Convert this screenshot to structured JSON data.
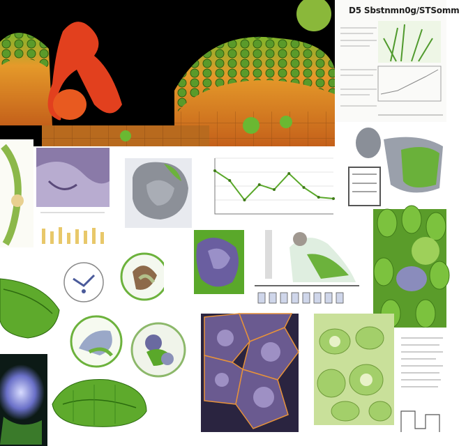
{
  "header": {
    "title": "D5 Sbstnmn0g/STSomm"
  },
  "panels": [
    {
      "name": "organ-tissue-render",
      "kind": "photo"
    },
    {
      "name": "leaf-cells-render",
      "kind": "photo"
    },
    {
      "name": "purple-cell-clusters-render",
      "kind": "photo"
    },
    {
      "name": "grayscale-organ-render",
      "kind": "photo"
    },
    {
      "name": "line-chart-figure",
      "kind": "chart"
    },
    {
      "name": "green-organ-closeup-render",
      "kind": "photo"
    }
  ],
  "colors": {
    "leaf_green": "#5aa82a",
    "tissue_orange": "#e0902a",
    "cell_purple": "#6a5a90",
    "background_black": "#000000",
    "accent_red": "#e2401e"
  },
  "chart_data": {
    "type": "line",
    "x": [
      1,
      2,
      3,
      4,
      5,
      6,
      7,
      8,
      9
    ],
    "values": [
      62,
      48,
      20,
      42,
      35,
      58,
      38,
      24,
      22
    ],
    "title": "",
    "xlabel": "",
    "ylabel": "",
    "ylim": [
      0,
      80
    ],
    "grid": true
  }
}
